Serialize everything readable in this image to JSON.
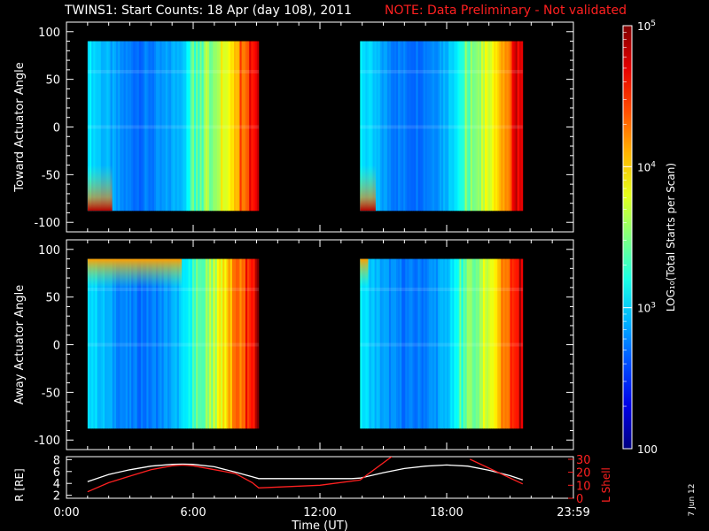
{
  "title": "TWINS1: Start Counts: 18 Apr (day 108), 2011",
  "note": "NOTE: Data Preliminary - Not validated",
  "date_stamp": "7 Jun 12",
  "colors": {
    "background": "#000000",
    "axes": "#ffffff",
    "note": "#ff2020",
    "lshell": "#ff2020",
    "radius": "#ffffff"
  },
  "chart_data": [
    {
      "type": "heatmap",
      "panel": "toward",
      "ylabel": "Toward Actuator Angle",
      "ylim": [
        -110,
        110
      ],
      "yticks": [
        100,
        50,
        0,
        -50,
        -100
      ],
      "xlim": [
        0,
        24
      ],
      "data_windows_hours": [
        [
          1.0,
          9.1
        ],
        [
          13.9,
          21.6
        ]
      ],
      "angle_range": [
        -88,
        90
      ]
    },
    {
      "type": "heatmap",
      "panel": "away",
      "ylabel": "Away Actuator Angle",
      "ylim": [
        -110,
        110
      ],
      "yticks": [
        100,
        50,
        0,
        -50,
        -100
      ],
      "xlim": [
        0,
        24
      ],
      "data_windows_hours": [
        [
          1.0,
          9.1
        ],
        [
          13.9,
          21.6
        ]
      ],
      "angle_range": [
        -88,
        90
      ]
    },
    {
      "type": "line",
      "panel": "orbit",
      "xlabel": "Time (UT)",
      "xticks": [
        "0:00",
        "6:00",
        "12:00",
        "18:00",
        "23:59"
      ],
      "xlim": [
        0,
        24
      ],
      "ylabel_left": "R [RE]",
      "yticks_left": [
        2,
        4,
        6,
        8
      ],
      "ylim_left": [
        1.5,
        8.5
      ],
      "ylabel_right": "L Shell",
      "yticks_right": [
        0,
        10,
        20,
        30
      ],
      "ylim_right": [
        0,
        32
      ],
      "series": [
        {
          "name": "R",
          "axis": "left",
          "x": [
            1.0,
            2.0,
            3.0,
            4.0,
            5.0,
            5.5,
            6.0,
            7.0,
            8.0,
            8.8,
            9.1,
            10,
            11,
            12,
            13,
            13.5,
            13.9,
            15,
            16,
            17,
            18,
            19,
            20,
            21,
            21.6
          ],
          "y": [
            4.3,
            5.5,
            6.3,
            6.9,
            7.2,
            7.25,
            7.2,
            6.8,
            5.9,
            5.1,
            4.8,
            4.8,
            4.8,
            4.8,
            4.8,
            4.8,
            4.9,
            5.8,
            6.5,
            6.9,
            7.1,
            6.9,
            6.2,
            5.3,
            4.6
          ]
        },
        {
          "name": "L Shell",
          "axis": "right",
          "x": [
            1.0,
            2.0,
            3.0,
            4.0,
            5.0,
            5.5,
            6.0,
            7.0,
            8.0,
            8.8,
            9.1,
            12,
            13.9,
            15.4,
            null,
            19.1,
            21.6
          ],
          "y": [
            5,
            12,
            17,
            22,
            25,
            25.5,
            25,
            22,
            19,
            12,
            8,
            10,
            14,
            32,
            null,
            30,
            11
          ]
        }
      ]
    },
    {
      "type": "colorbar",
      "label": "LOG₁₀(Total Starts per Scan)",
      "scale": "log",
      "range": [
        100,
        100000
      ],
      "ticks": [
        "10^5",
        "10^4",
        "10^3",
        "100"
      ]
    }
  ]
}
